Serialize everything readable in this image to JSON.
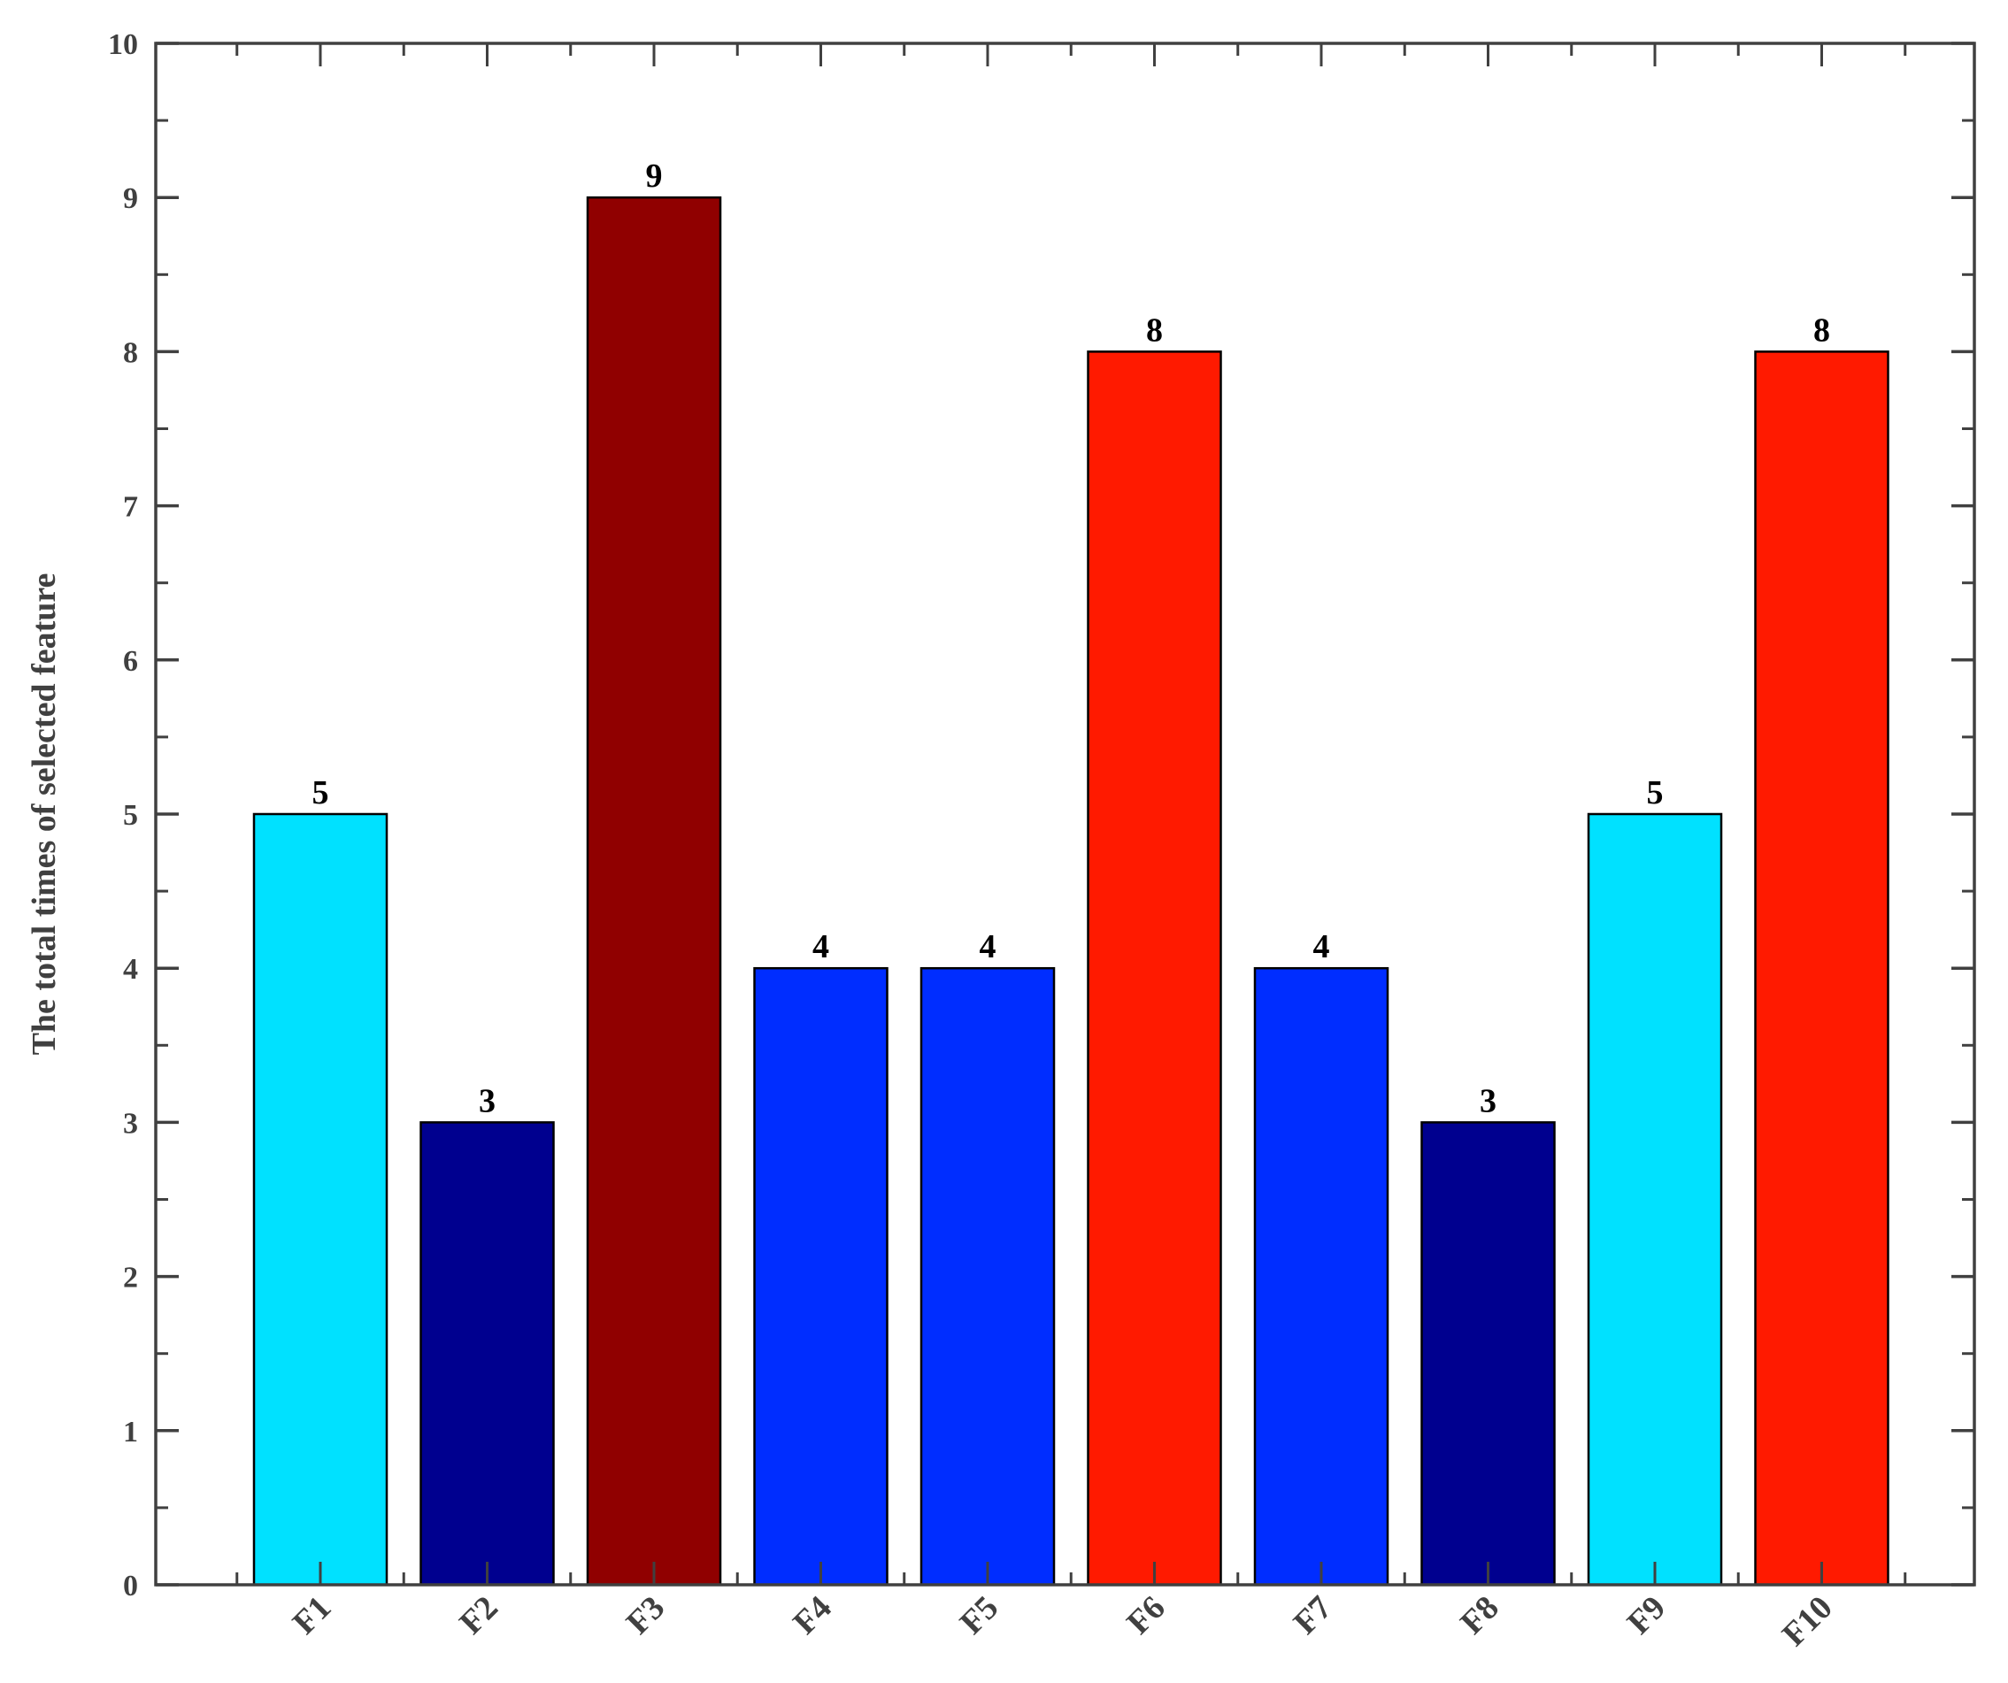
{
  "chart_data": {
    "type": "bar",
    "title": "",
    "xlabel": "",
    "ylabel": "The total times of selected feature",
    "categories": [
      "F1",
      "F2",
      "F3",
      "F4",
      "F5",
      "F6",
      "F7",
      "F8",
      "F9",
      "F10"
    ],
    "values": [
      5,
      3,
      9,
      4,
      4,
      8,
      4,
      3,
      5,
      8
    ],
    "data_labels": [
      "5",
      "3",
      "9",
      "4",
      "4",
      "8",
      "4",
      "3",
      "5",
      "8"
    ],
    "bar_colors": [
      "#00E1FF",
      "#00008F",
      "#900000",
      "#002DFF",
      "#002DFF",
      "#FF1A00",
      "#002DFF",
      "#00008F",
      "#00E1FF",
      "#FF1A00"
    ],
    "ylim": [
      0,
      10
    ],
    "yticks": [
      0,
      1,
      2,
      3,
      4,
      5,
      6,
      7,
      8,
      9,
      10
    ],
    "ytick_labels": [
      "0",
      "1",
      "2",
      "3",
      "4",
      "5",
      "6",
      "7",
      "8",
      "9",
      "10"
    ],
    "grid": false,
    "legend": "none"
  }
}
